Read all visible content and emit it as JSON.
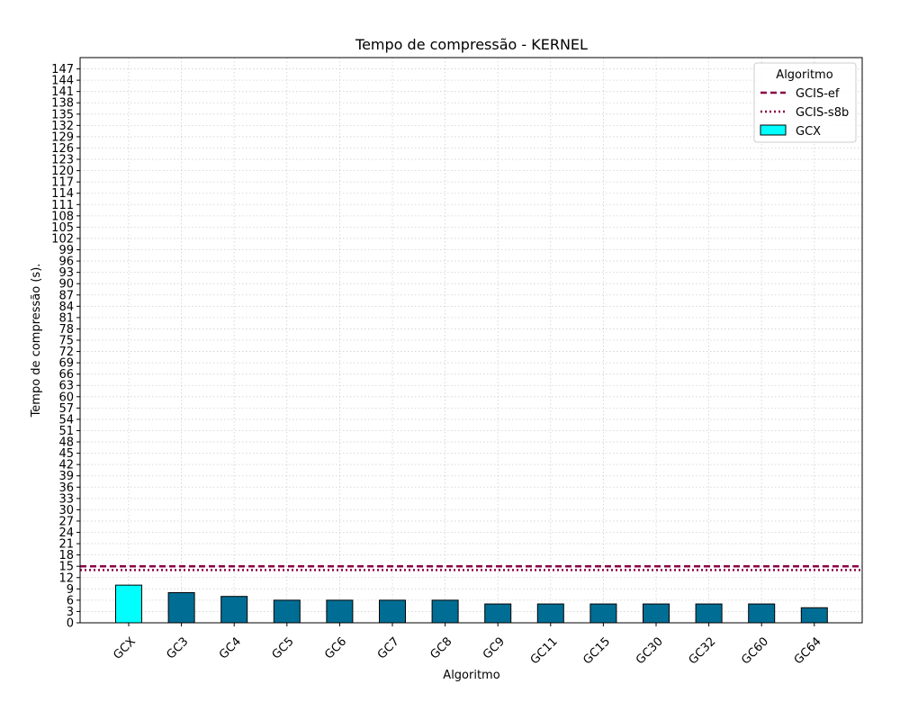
{
  "chart_data": {
    "type": "bar",
    "title": "Tempo de compressão -  KERNEL",
    "xlabel": "Algoritmo",
    "ylabel": "Tempo de compressão (s).",
    "categories": [
      "GCX",
      "GC3",
      "GC4",
      "GC5",
      "GC6",
      "GC7",
      "GC8",
      "GC9",
      "GC11",
      "GC15",
      "GC30",
      "GC32",
      "GC60",
      "GC64"
    ],
    "values": [
      10,
      8,
      7,
      6,
      6,
      6,
      6,
      5,
      5,
      5,
      5,
      5,
      5,
      4
    ],
    "bar_colors": [
      "#00ffff",
      "#006d94",
      "#006d94",
      "#006d94",
      "#006d94",
      "#006d94",
      "#006d94",
      "#006d94",
      "#006d94",
      "#006d94",
      "#006d94",
      "#006d94",
      "#006d94",
      "#006d94"
    ],
    "ylim": [
      0,
      150
    ],
    "yticks": [
      0,
      3,
      6,
      9,
      12,
      15,
      18,
      21,
      24,
      27,
      30,
      33,
      36,
      39,
      42,
      45,
      48,
      51,
      54,
      57,
      60,
      63,
      66,
      69,
      72,
      75,
      78,
      81,
      84,
      87,
      90,
      93,
      96,
      99,
      102,
      105,
      108,
      111,
      114,
      117,
      120,
      123,
      126,
      129,
      132,
      135,
      138,
      141,
      144,
      147
    ],
    "grid": true,
    "reference_lines": [
      {
        "name": "GCIS-ef",
        "value": 15,
        "style": "dashed",
        "color": "#8b0045"
      },
      {
        "name": "GCIS-s8b",
        "value": 14,
        "style": "dotted",
        "color": "#8b0045"
      }
    ],
    "legend": {
      "title": "Algoritmo",
      "placement": "top-right",
      "entries": [
        {
          "label": "GCIS-ef",
          "kind": "dashed-line",
          "color": "#8b0045"
        },
        {
          "label": "GCIS-s8b",
          "kind": "dotted-line",
          "color": "#8b0045"
        },
        {
          "label": "GCX",
          "kind": "patch",
          "color": "#00ffff"
        }
      ]
    }
  }
}
